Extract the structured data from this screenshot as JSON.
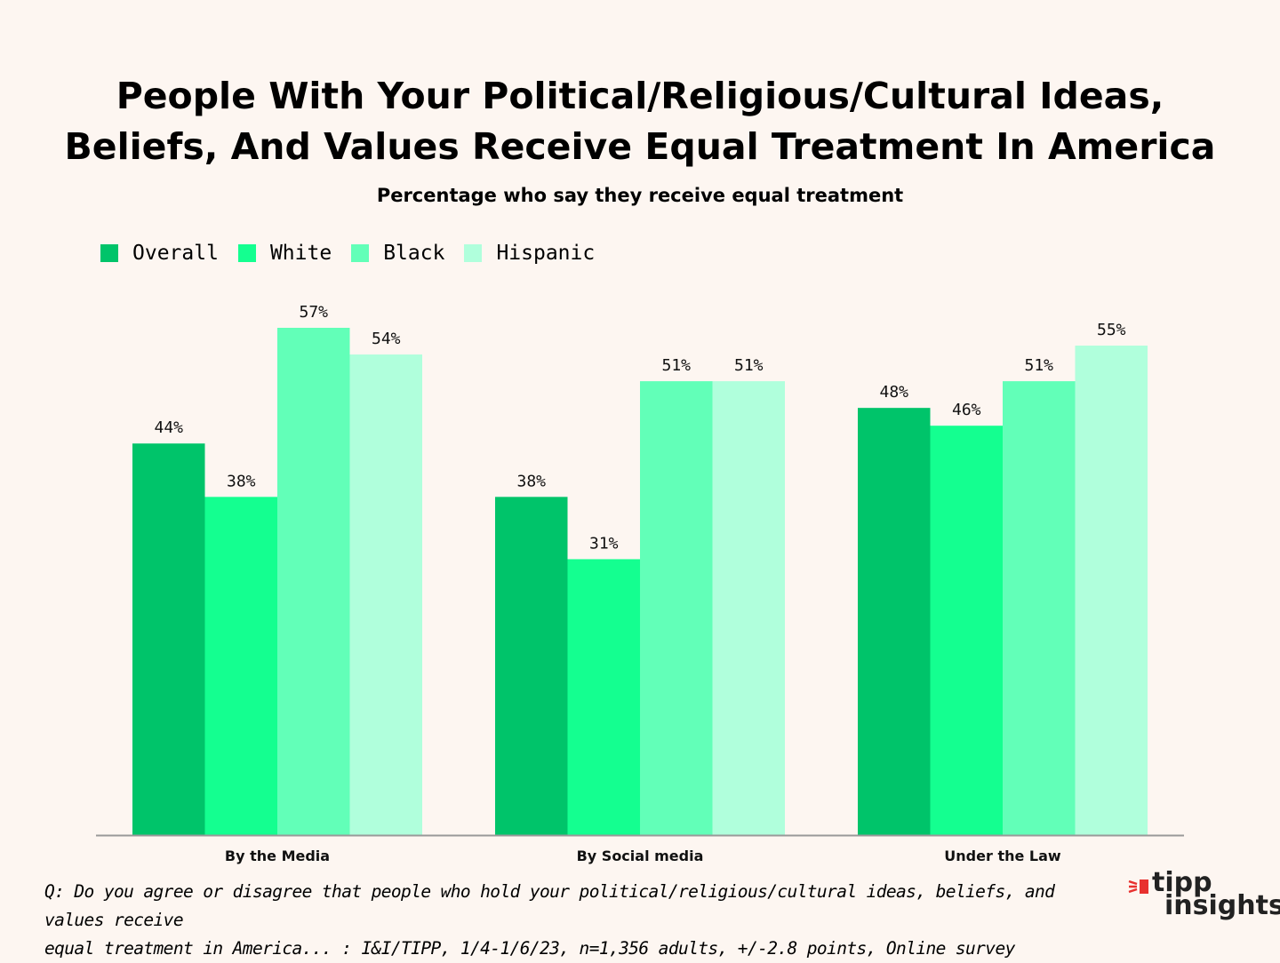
{
  "chart_data": {
    "type": "bar",
    "title": [
      "People With Your Political/Religious/Cultural Ideas,",
      "Beliefs, And Values Receive Equal Treatment In America"
    ],
    "subtitle": "Percentage who say they receive equal treatment",
    "categories": [
      "By the Media",
      "By Social media",
      "Under the Law"
    ],
    "series": [
      {
        "name": "Overall",
        "color": "#00c46a",
        "values": [
          44,
          38,
          48
        ],
        "labels": [
          "44%",
          "38%",
          "48%"
        ]
      },
      {
        "name": "White",
        "color": "#14ff90",
        "values": [
          38,
          31,
          46
        ],
        "labels": [
          "38%",
          "31%",
          "46%"
        ]
      },
      {
        "name": "Black",
        "color": "#62ffb8",
        "values": [
          57,
          51,
          51
        ],
        "labels": [
          "57%",
          "51%",
          "51%"
        ]
      },
      {
        "name": "Hispanic",
        "color": "#b0ffdc",
        "values": [
          54,
          51,
          55
        ],
        "labels": [
          "54%",
          "51%",
          "55%"
        ]
      }
    ],
    "ylim": [
      0,
      57
    ],
    "legend": "top-left",
    "grid": false
  },
  "footnote": {
    "line1": "Q: Do you agree or disagree that people who hold your political/religious/cultural ideas, beliefs, and values receive",
    "line2": "equal treatment in America... : I&I/TIPP, 1/4-1/6/23, n=1,356 adults, +/-2.8 points, Online survey"
  },
  "logo": {
    "word1": "tipp",
    "word2": "insights",
    "accent": "#e8312f"
  }
}
